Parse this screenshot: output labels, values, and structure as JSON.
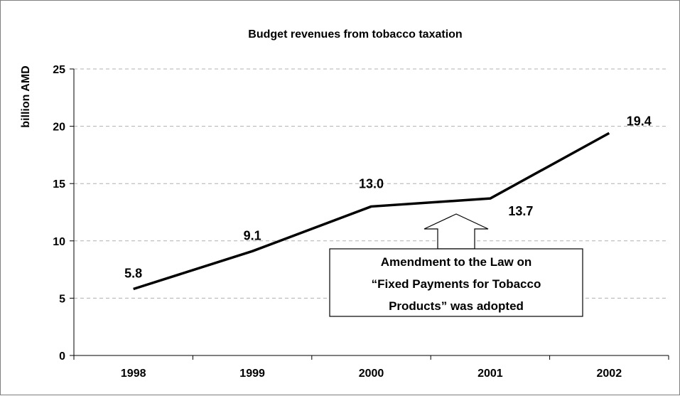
{
  "chart_data": {
    "type": "line",
    "title": "Budget revenues from tobacco taxation",
    "ylabel": "billion AMD",
    "xlabel": "",
    "ylim": [
      0,
      25
    ],
    "yticks": [
      0,
      5,
      10,
      15,
      20,
      25
    ],
    "categories": [
      "1998",
      "1999",
      "2000",
      "2001",
      "2002"
    ],
    "series": [
      {
        "values": [
          5.8,
          9.1,
          13.0,
          13.7,
          19.4
        ]
      }
    ],
    "data_labels": [
      "5.8",
      "9.1",
      "13.0",
      "13.7",
      "19.4"
    ],
    "grid": true,
    "annotation": {
      "lines": [
        "Amendment to the Law on",
        "“Fixed Payments for Tobacco",
        "Products” was adopted"
      ]
    },
    "colors": {
      "line": "#000000",
      "grid": "#b0b0b0",
      "frame": "#808080"
    }
  }
}
